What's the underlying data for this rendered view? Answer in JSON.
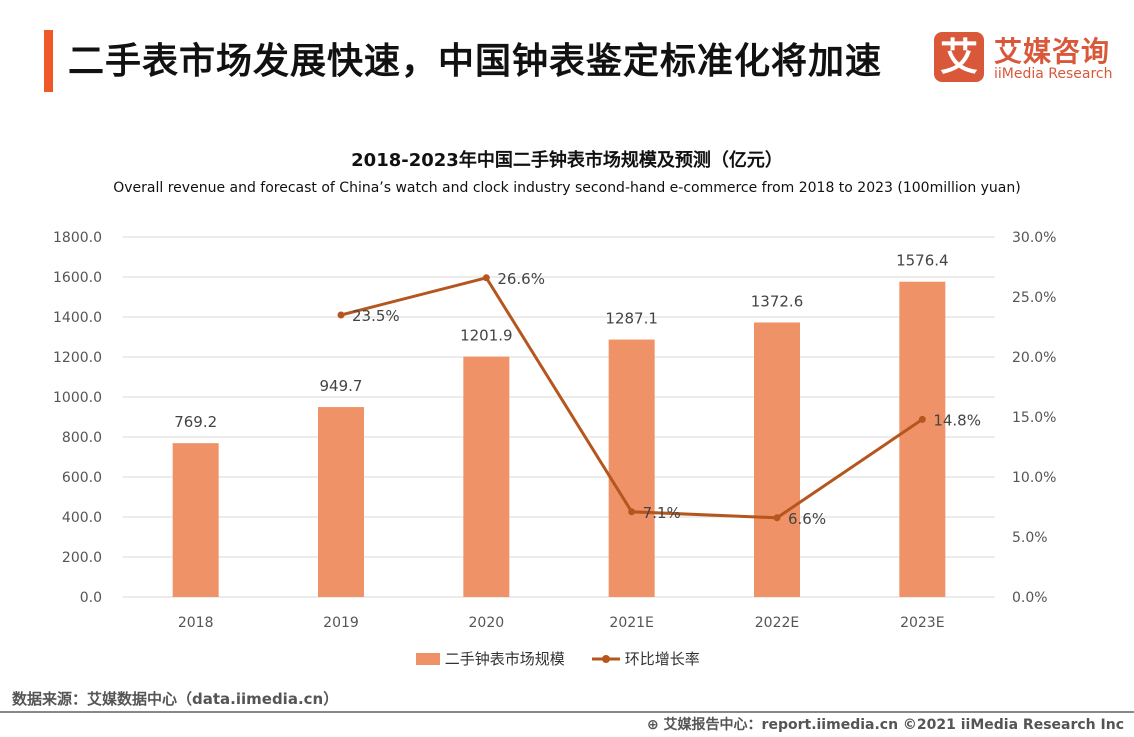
{
  "header": {
    "title": "二手表市场发展快速，中国钟表鉴定标准化将加速",
    "logo_mark": "艾",
    "logo_cn": "艾媒咨询",
    "logo_en": "iiMedia Research"
  },
  "chart_data": {
    "type": "bar+line",
    "title": "2018-2023年中国二手钟表市场规模及预测（亿元）",
    "subtitle": "Overall revenue and forecast of China’s  watch and clock industry second-hand e-commerce from 2018 to 2023 (100million yuan)",
    "categories": [
      "2018",
      "2019",
      "2020",
      "2021E",
      "2022E",
      "2023E"
    ],
    "series": [
      {
        "name": "二手钟表市场规模",
        "type": "bar",
        "axis": "left",
        "color": "#f09267",
        "values": [
          769.2,
          949.7,
          1201.9,
          1287.1,
          1372.6,
          1576.4
        ],
        "labels": [
          "769.2",
          "949.7",
          "1201.9",
          "1287.1",
          "1372.6",
          "1576.4"
        ]
      },
      {
        "name": "环比增长率",
        "type": "line",
        "axis": "right",
        "color": "#b5561e",
        "values": [
          null,
          23.5,
          26.6,
          7.1,
          6.6,
          14.8
        ],
        "labels": [
          "",
          "23.5%",
          "26.6%",
          "7.1%",
          "6.6%",
          "14.8%"
        ]
      }
    ],
    "y_left": {
      "range": [
        0,
        1800
      ],
      "ticks": [
        "0.0",
        "200.0",
        "400.0",
        "600.0",
        "800.0",
        "1000.0",
        "1200.0",
        "1400.0",
        "1600.0",
        "1800.0"
      ]
    },
    "y_right": {
      "range": [
        0,
        30
      ],
      "ticks": [
        "0.0%",
        "5.0%",
        "10.0%",
        "15.0%",
        "20.0%",
        "25.0%",
        "30.0%"
      ]
    },
    "grid": true,
    "legend": "bottom"
  },
  "footer": {
    "source": "数据来源：艾媒数据中心（data.iimedia.cn）",
    "credit": "⊕ 艾媒报告中心：report.iimedia.cn   ©2021  iiMedia Research  Inc"
  }
}
